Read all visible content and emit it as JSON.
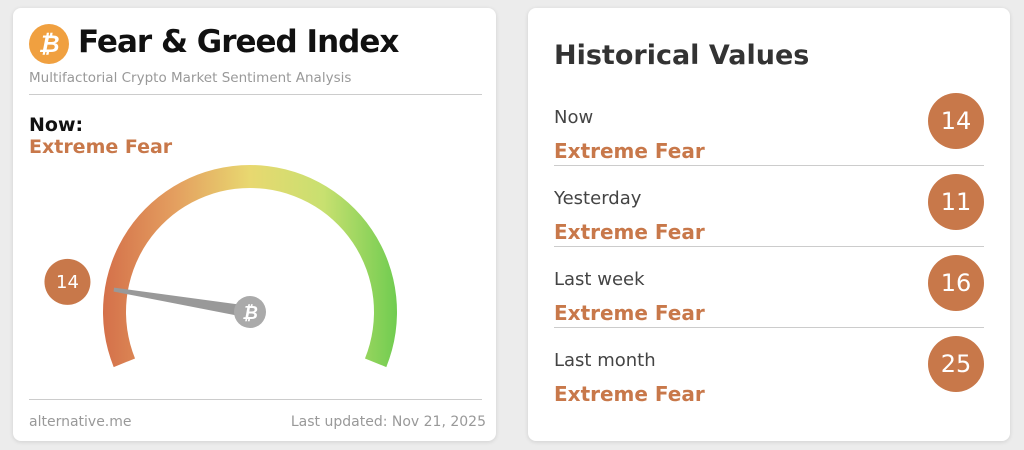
{
  "widget": {
    "title": "Fear & Greed Index",
    "subtitle": "Multifactorial Crypto Market Sentiment Analysis",
    "now_label": "Now:",
    "now_classification": "Extreme Fear",
    "value": 14,
    "gauge_range": [
      0,
      100
    ],
    "source": "alternative.me",
    "last_updated": "Last updated: Nov 21, 2025",
    "logo_icon": "bitcoin-icon",
    "accent_color": "#c8784a"
  },
  "historical": {
    "title": "Historical Values",
    "rows": [
      {
        "label": "Now",
        "classification": "Extreme Fear",
        "value": "14"
      },
      {
        "label": "Yesterday",
        "classification": "Extreme Fear",
        "value": "11"
      },
      {
        "label": "Last week",
        "classification": "Extreme Fear",
        "value": "16"
      },
      {
        "label": "Last month",
        "classification": "Extreme Fear",
        "value": "25"
      }
    ]
  }
}
